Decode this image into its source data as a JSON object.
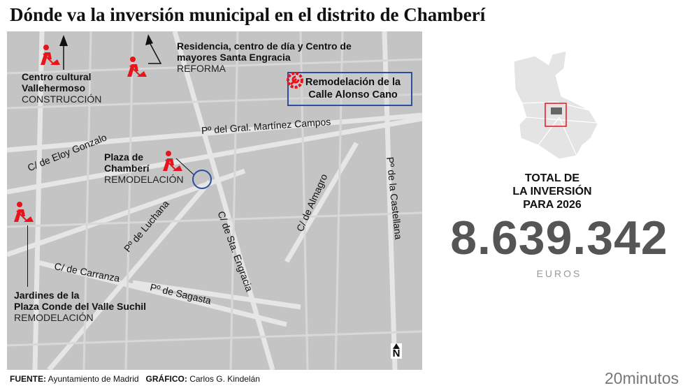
{
  "title": "Dónde va la inversión municipal en el distrito de Chamberí",
  "map": {
    "projects": [
      {
        "name": "Centro cultural Vallehermoso",
        "name_lines": [
          "Centro cultural",
          "Vallehermoso"
        ],
        "status": "CONSTRUCCIÓN",
        "icon": "road-works-icon"
      },
      {
        "name": "Residencia, centro de día y Centro de mayores Santa Engracia",
        "name_lines": [
          "Residencia, centro de día y Centro de",
          "mayores Santa Engracia"
        ],
        "status": "REFORMA",
        "icon": "road-works-icon"
      },
      {
        "name": "Remodelación de la Calle Alonso Cano",
        "name_lines": [
          "Remodelación de la",
          "Calle Alonso Cano"
        ],
        "status": "",
        "icon": "wrench-gear-icon"
      },
      {
        "name": "Plaza de Chamberí",
        "name_lines": [
          "Plaza de",
          "Chamberí"
        ],
        "status": "REMODELACIÓN",
        "icon": "road-works-icon"
      },
      {
        "name": "Jardines de la Plaza Conde del Valle Suchil",
        "name_lines": [
          "Jardines de la",
          "Plaza Conde del Valle Suchil"
        ],
        "status": "REMODELACIÓN",
        "icon": "road-works-icon"
      }
    ],
    "streets": [
      "Pº del Gral. Martínez Campos",
      "C/ de Eloy Gonzalo",
      "C/ de Almagro",
      "Pº de la Castellana",
      "Pº de Luchana",
      "C/ de Sta. Engracia",
      "C/ de Carranza",
      "Pº de Sagasta"
    ],
    "north": "N"
  },
  "summary": {
    "label_lines": [
      "TOTAL DE",
      "LA INVERSIÓN",
      "PARA 2026"
    ],
    "value": "8.639.342",
    "unit": "EUROS"
  },
  "footer": {
    "source_label": "FUENTE:",
    "source": "Ayuntamiento de Madrid",
    "graphic_label": "GRÁFICO:",
    "graphic": "Carlos G. Kindelán"
  },
  "brand": "20minutos",
  "colors": {
    "accent_red": "#e8141b",
    "highlight_blue": "#2b4f9e",
    "number_gray": "#555555"
  }
}
